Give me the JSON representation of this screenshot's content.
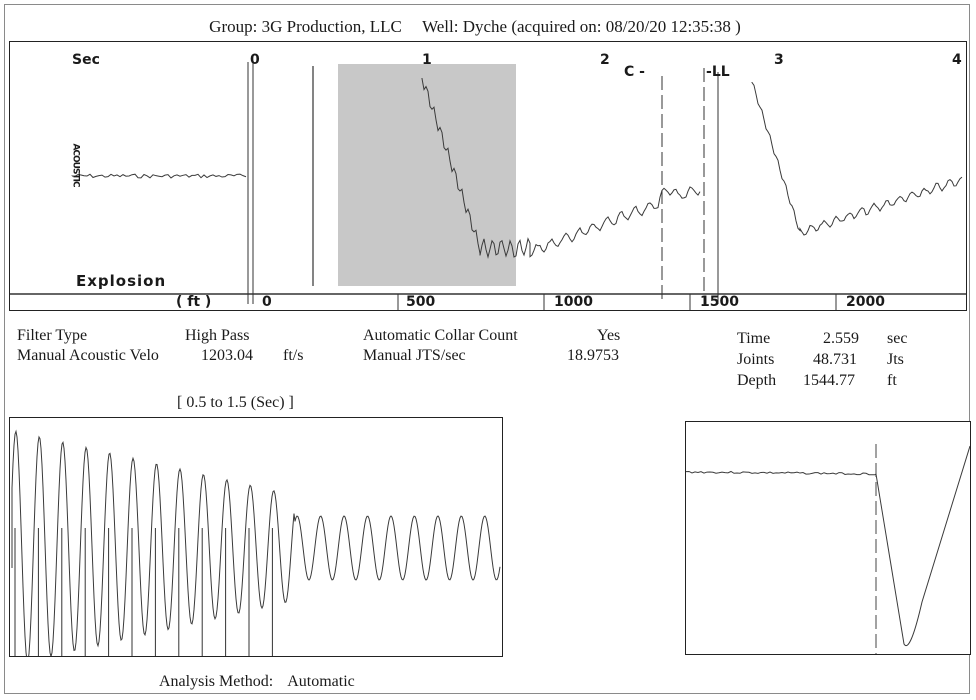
{
  "header": {
    "group_label": "Group: 3G Production, LLC",
    "well_label": "Well: Dyche (acquired on: 08/20/20 12:35:38 )"
  },
  "main_trace": {
    "sec_label": "Sec",
    "sec_ticks": [
      "0",
      "1",
      "2",
      "3",
      "4"
    ],
    "ft_label": "( ft )",
    "ft_ticks": [
      "0",
      "500",
      "1000",
      "1500",
      "2000"
    ],
    "explosion_label": "Explosion",
    "side_label": "ACOUSTIC",
    "marker_c": "C",
    "marker_ll": "LL"
  },
  "params": {
    "filter_type_label": "Filter Type",
    "filter_type_value": "High Pass",
    "manual_acoustic_label": "Manual Acoustic Velo",
    "manual_acoustic_value": "1203.04",
    "manual_acoustic_unit": "ft/s",
    "auto_collar_label": "Automatic Collar Count",
    "auto_collar_value": "Yes",
    "manual_jts_label": "Manual JTS/sec",
    "manual_jts_value": "18.9753",
    "time_label": "Time",
    "time_value": "2.559",
    "time_unit": "sec",
    "joints_label": "Joints",
    "joints_value": "48.731",
    "joints_unit": "Jts",
    "depth_label": "Depth",
    "depth_value": "1544.77",
    "depth_unit": "ft"
  },
  "range_label": "[ 0.5  to  1.5 (Sec) ]",
  "footer": {
    "analysis_label": "Analysis Method:",
    "analysis_value": "Automatic"
  },
  "colors": {
    "trace": "#3a3a3a",
    "selection": "#c8c8c8",
    "frame": "#222222"
  }
}
